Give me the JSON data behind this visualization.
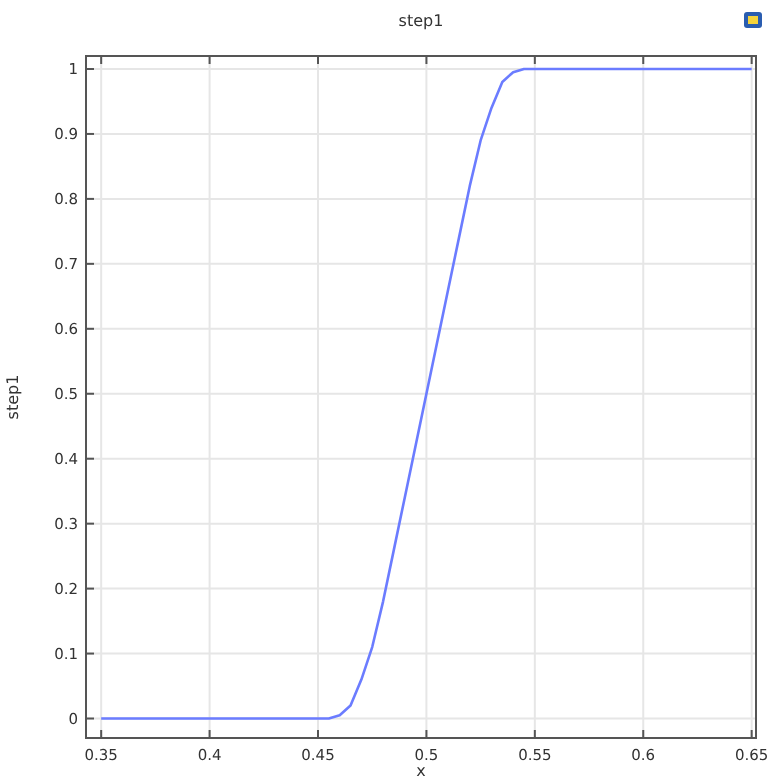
{
  "chart_data": {
    "type": "line",
    "title": "step1",
    "xlabel": "x",
    "ylabel": "step1",
    "x": [
      0.35,
      0.455,
      0.46,
      0.465,
      0.47,
      0.475,
      0.48,
      0.485,
      0.49,
      0.495,
      0.5,
      0.505,
      0.51,
      0.515,
      0.52,
      0.525,
      0.53,
      0.535,
      0.54,
      0.545,
      0.65
    ],
    "series": [
      {
        "color": "#6b7cff",
        "values": [
          0,
          0,
          0.005,
          0.02,
          0.06,
          0.11,
          0.18,
          0.26,
          0.34,
          0.42,
          0.5,
          0.58,
          0.66,
          0.74,
          0.82,
          0.89,
          0.94,
          0.98,
          0.995,
          1,
          1
        ]
      }
    ],
    "xlim": [
      0.343,
      0.652
    ],
    "xticks": [
      0.35,
      0.4,
      0.45,
      0.5,
      0.55,
      0.6,
      0.65
    ],
    "ylim": [
      -0.03,
      1.02
    ],
    "yticks": [
      0,
      0.1,
      0.2,
      0.3,
      0.4,
      0.5,
      0.6,
      0.7,
      0.8,
      0.9,
      1
    ],
    "grid": true,
    "marker": "none",
    "line_style": "solid"
  }
}
